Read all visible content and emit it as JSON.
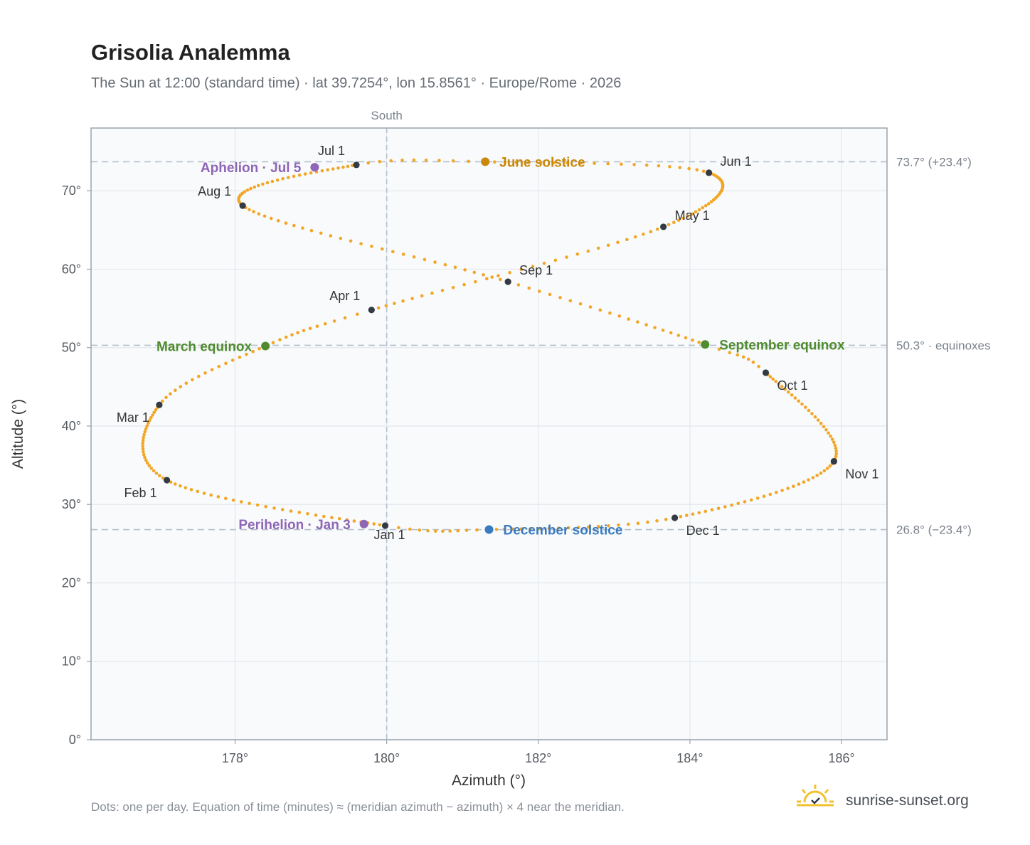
{
  "header": {
    "title": "Grisolia Analemma",
    "subtitle": "The Sun at 12:00 (standard time) · lat 39.7254°, lon 15.8561° · Europe/Rome · 2026"
  },
  "footer": {
    "note": "Dots: one per day. Equation of time (minutes) ≈ (meridian azimuth − azimuth) × 4 near the meridian.",
    "brand": "sunrise-sunset.org"
  },
  "colors": {
    "curve": "#f2a626",
    "month_marker": "#333a44",
    "june_solstice": "#c9870b",
    "december_solstice": "#3a7ac0",
    "equinox": "#4f8c2f",
    "perihelion_aphelion": "#8e66b5",
    "ref_line": "#b5c0cc",
    "plot_bg": "#f8fafc",
    "grid": "#e4e8ed",
    "brand_sun": "#f2c12e"
  },
  "chart_data": {
    "type": "scatter",
    "xlabel": "Azimuth (°)",
    "ylabel": "Altitude (°)",
    "xlim": [
      176.1,
      186.6
    ],
    "ylim": [
      0,
      78
    ],
    "x_ticks": [
      {
        "value": 178,
        "label": "178°"
      },
      {
        "value": 180,
        "label": "180°"
      },
      {
        "value": 182,
        "label": "182°"
      },
      {
        "value": 184,
        "label": "184°"
      },
      {
        "value": 186,
        "label": "186°"
      }
    ],
    "y_ticks": [
      {
        "value": 0,
        "label": "0°"
      },
      {
        "value": 10,
        "label": "10°"
      },
      {
        "value": 20,
        "label": "20°"
      },
      {
        "value": 30,
        "label": "30°"
      },
      {
        "value": 40,
        "label": "40°"
      },
      {
        "value": 50,
        "label": "50°"
      },
      {
        "value": 60,
        "label": "60°"
      },
      {
        "value": 70,
        "label": "70°"
      }
    ],
    "grid": true,
    "vertical_reference": {
      "value": 180,
      "label": "South"
    },
    "horizontal_references": [
      {
        "value": 73.7,
        "label": "73.7° (+23.4°)"
      },
      {
        "value": 50.3,
        "label": "50.3° · equinoxes"
      },
      {
        "value": 26.8,
        "label": "26.8° (−23.4°)"
      }
    ],
    "curve_anchors": [
      {
        "day": 1,
        "az": 179.98,
        "alt": 27.3
      },
      {
        "day": 32,
        "az": 177.1,
        "alt": 33.1
      },
      {
        "day": 60,
        "az": 177.0,
        "alt": 42.7
      },
      {
        "day": 78,
        "az": 178.4,
        "alt": 50.2
      },
      {
        "day": 91,
        "az": 179.8,
        "alt": 54.8
      },
      {
        "day": 121,
        "az": 183.65,
        "alt": 65.4
      },
      {
        "day": 152,
        "az": 184.25,
        "alt": 72.3
      },
      {
        "day": 172,
        "az": 181.3,
        "alt": 73.7
      },
      {
        "day": 182,
        "az": 179.6,
        "alt": 73.3
      },
      {
        "day": 213,
        "az": 178.1,
        "alt": 68.1
      },
      {
        "day": 244,
        "az": 181.6,
        "alt": 58.4
      },
      {
        "day": 266,
        "az": 184.2,
        "alt": 50.4
      },
      {
        "day": 274,
        "az": 185.0,
        "alt": 46.8
      },
      {
        "day": 305,
        "az": 185.9,
        "alt": 35.5
      },
      {
        "day": 335,
        "az": 183.8,
        "alt": 28.3
      },
      {
        "day": 355,
        "az": 181.35,
        "alt": 26.8
      }
    ],
    "month_markers": [
      {
        "label": "Jan 1",
        "az": 179.98,
        "alt": 27.3,
        "label_pos": "below"
      },
      {
        "label": "Feb 1",
        "az": 177.1,
        "alt": 33.1,
        "label_pos": "below-left"
      },
      {
        "label": "Mar 1",
        "az": 177.0,
        "alt": 42.7,
        "label_pos": "below-left"
      },
      {
        "label": "Apr 1",
        "az": 179.8,
        "alt": 54.8,
        "label_pos": "above-left"
      },
      {
        "label": "May 1",
        "az": 183.65,
        "alt": 65.4,
        "label_pos": "above-right"
      },
      {
        "label": "Jun 1",
        "az": 184.25,
        "alt": 72.3,
        "label_pos": "above-right"
      },
      {
        "label": "Jul 1",
        "az": 179.6,
        "alt": 73.3,
        "label_pos": "above-left"
      },
      {
        "label": "Aug 1",
        "az": 178.1,
        "alt": 68.1,
        "label_pos": "above-left"
      },
      {
        "label": "Sep 1",
        "az": 181.6,
        "alt": 58.4,
        "label_pos": "above-right"
      },
      {
        "label": "Oct 1",
        "az": 185.0,
        "alt": 46.8,
        "label_pos": "below-right"
      },
      {
        "label": "Nov 1",
        "az": 185.9,
        "alt": 35.5,
        "label_pos": "below-right"
      },
      {
        "label": "Dec 1",
        "az": 183.8,
        "alt": 28.3,
        "label_pos": "below-right"
      }
    ],
    "events": [
      {
        "label": "June solstice",
        "az": 181.3,
        "alt": 73.7,
        "color_key": "june_solstice",
        "side": "right"
      },
      {
        "label": "December solstice",
        "az": 181.35,
        "alt": 26.8,
        "color_key": "december_solstice",
        "side": "right"
      },
      {
        "label": "March equinox",
        "az": 178.4,
        "alt": 50.2,
        "color_key": "equinox",
        "side": "left"
      },
      {
        "label": "September equinox",
        "az": 184.2,
        "alt": 50.4,
        "color_key": "equinox",
        "side": "right"
      },
      {
        "label": "Aphelion · Jul 5",
        "az": 179.05,
        "alt": 73.0,
        "color_key": "perihelion_aphelion",
        "side": "left"
      },
      {
        "label": "Perihelion · Jan 3",
        "az": 179.7,
        "alt": 27.5,
        "color_key": "perihelion_aphelion",
        "side": "left"
      }
    ]
  }
}
